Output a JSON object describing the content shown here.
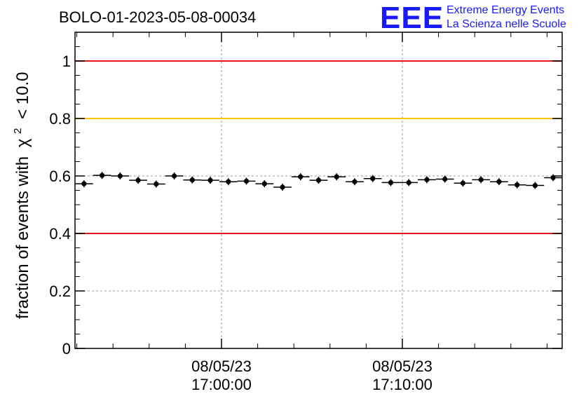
{
  "chart_data": {
    "type": "scatter",
    "title": "BOLO-01-2023-05-08-00034",
    "ylabel": "fraction of events with",
    "ylabel_symbol": "χ",
    "ylabel_superscript": "2",
    "ylabel_suffix": "< 10.0",
    "xlabel": "",
    "ylim": [
      0,
      1.1
    ],
    "yticks": [
      0,
      0.2,
      0.4,
      0.6,
      0.8,
      1
    ],
    "ytick_labels": [
      "0",
      "0.2",
      "0.4",
      "0.6",
      "0.8",
      "1"
    ],
    "xtick_labels": [
      {
        "date": "08/05/23",
        "time": "17:00:00"
      },
      {
        "date": "08/05/23",
        "time": "17:10:00"
      }
    ],
    "grid": true,
    "reference_lines": [
      {
        "y": 1.0,
        "color": "#e8141b"
      },
      {
        "y": 0.8,
        "color": "#ffc200"
      },
      {
        "y": 0.4,
        "color": "#e8141b"
      }
    ],
    "points": [
      0.573,
      0.602,
      0.6,
      0.585,
      0.572,
      0.6,
      0.586,
      0.585,
      0.58,
      0.582,
      0.573,
      0.561,
      0.597,
      0.585,
      0.597,
      0.58,
      0.591,
      0.577,
      0.577,
      0.587,
      0.589,
      0.575,
      0.587,
      0.58,
      0.569,
      0.567,
      0.594
    ]
  },
  "logo": {
    "text": "EEE",
    "line1": "Extreme Energy Events",
    "line2": "La Scienza nelle Scuole",
    "color": "#1a1aff"
  }
}
